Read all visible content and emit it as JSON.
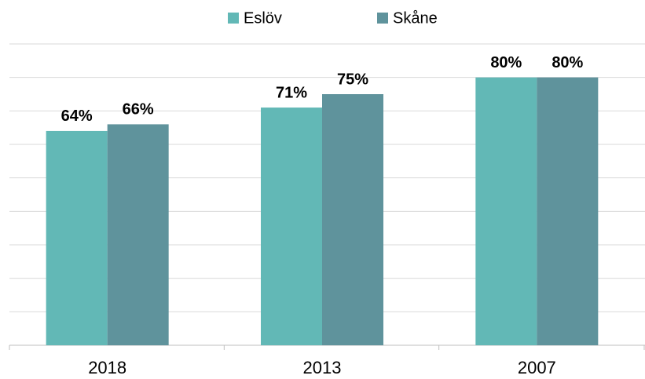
{
  "chart_data": {
    "type": "bar",
    "categories": [
      "2018",
      "2013",
      "2007"
    ],
    "series": [
      {
        "name": "Eslöv",
        "color": "#62b8b6",
        "values": [
          64,
          71,
          80
        ],
        "value_labels": [
          "64%",
          "71%",
          "80%"
        ]
      },
      {
        "name": "Skåne",
        "color": "#5f939c",
        "values": [
          66,
          75,
          80
        ],
        "value_labels": [
          "66%",
          "75%",
          "80%"
        ]
      }
    ],
    "ylim": [
      0,
      90
    ],
    "yticks": [
      0,
      10,
      20,
      30,
      40,
      50,
      60,
      70,
      80,
      90
    ],
    "grid": true,
    "legend": "top"
  }
}
